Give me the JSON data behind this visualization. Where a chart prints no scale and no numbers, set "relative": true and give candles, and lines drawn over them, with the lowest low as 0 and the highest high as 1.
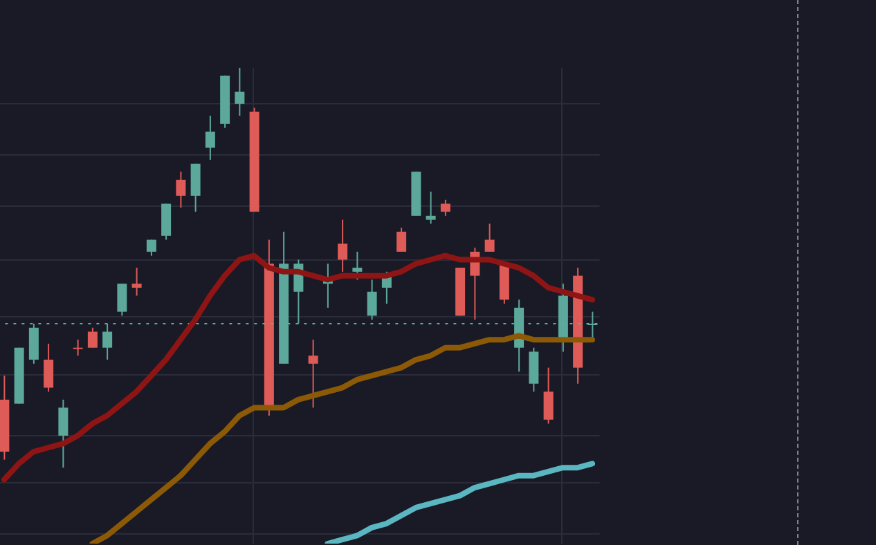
{
  "chart_data": {
    "type": "candlestick",
    "relative": true,
    "grid": true,
    "tick_labels": false,
    "categories": [
      null,
      null,
      null,
      null,
      null,
      null,
      null,
      null,
      null,
      null,
      null,
      null,
      null,
      null,
      null,
      null,
      null,
      null,
      null,
      null,
      null,
      null,
      null,
      null,
      null,
      null,
      null,
      null,
      null,
      null,
      null,
      null,
      null,
      null,
      null,
      null,
      null,
      null,
      null,
      null,
      null
    ],
    "ohlc": [
      [
        0.17,
        0.23,
        0.02,
        0.04
      ],
      [
        0.16,
        0.3,
        0.16,
        0.3
      ],
      [
        0.27,
        0.36,
        0.26,
        0.35
      ],
      [
        0.27,
        0.31,
        0.19,
        0.2
      ],
      [
        0.08,
        0.17,
        0,
        0.15
      ],
      [
        0.3,
        0.32,
        0.28,
        0.3
      ],
      [
        0.34,
        0.35,
        0.3,
        0.3
      ],
      [
        0.3,
        0.36,
        0.27,
        0.34
      ],
      [
        0.39,
        0.46,
        0.38,
        0.46
      ],
      [
        0.46,
        0.5,
        0.43,
        0.45
      ],
      [
        0.54,
        0.57,
        0.53,
        0.57
      ],
      [
        0.58,
        0.66,
        0.57,
        0.66
      ],
      [
        0.72,
        0.74,
        0.65,
        0.68
      ],
      [
        0.68,
        0.76,
        0.64,
        0.76
      ],
      [
        0.8,
        0.88,
        0.77,
        0.84
      ],
      [
        0.86,
        0.98,
        0.85,
        0.98
      ],
      [
        0.91,
        1,
        0.88,
        0.94
      ],
      [
        0.89,
        0.9,
        0.64,
        0.64
      ],
      [
        0.51,
        0.57,
        0.13,
        0.15
      ],
      [
        0.26,
        0.59,
        0.26,
        0.51
      ],
      [
        0.44,
        0.52,
        0.36,
        0.51
      ],
      [
        0.28,
        0.32,
        0.15,
        0.26
      ],
      [
        0.46,
        0.51,
        0.4,
        0.47
      ],
      [
        0.56,
        0.62,
        0.49,
        0.52
      ],
      [
        0.49,
        0.54,
        0.47,
        0.5
      ],
      [
        0.38,
        0.47,
        0.37,
        0.44
      ],
      [
        0.45,
        0.49,
        0.41,
        0.48
      ],
      [
        0.59,
        0.6,
        0.54,
        0.54
      ],
      [
        0.63,
        0.74,
        0.63,
        0.74
      ],
      [
        0.62,
        0.69,
        0.61,
        0.63
      ],
      [
        0.66,
        0.67,
        0.63,
        0.64
      ],
      [
        0.5,
        0.5,
        0.38,
        0.38
      ],
      [
        0.54,
        0.55,
        0.37,
        0.48
      ],
      [
        0.57,
        0.61,
        0.54,
        0.54
      ],
      [
        0.51,
        0.51,
        0.41,
        0.42
      ],
      [
        0.3,
        0.42,
        0.24,
        0.4
      ],
      [
        0.21,
        0.3,
        0.19,
        0.29
      ],
      [
        0.19,
        0.25,
        0.11,
        0.12
      ],
      [
        0.32,
        0.46,
        0.29,
        0.43
      ],
      [
        0.48,
        0.5,
        0.21,
        0.25
      ],
      [
        0.36,
        0.39,
        0.32,
        0.36
      ]
    ],
    "colors": [
      "#de5b57",
      "#5ca89a",
      "#5ca89a",
      "#de5b57",
      "#5ca89a",
      "#de5b57",
      "#de5b57",
      "#5ca89a",
      "#5ca89a",
      "#de5b57",
      "#5ca89a",
      "#5ca89a",
      "#de5b57",
      "#5ca89a",
      "#5ca89a",
      "#5ca89a",
      "#5ca89a",
      "#de5b57",
      "#de5b57",
      "#5ca89a",
      "#5ca89a",
      "#de5b57",
      "#5ca89a",
      "#de5b57",
      "#5ca89a",
      "#5ca89a",
      "#5ca89a",
      "#de5b57",
      "#5ca89a",
      "#5ca89a",
      "#de5b57",
      "#de5b57",
      "#de5b57",
      "#de5b57",
      "#de5b57",
      "#5ca89a",
      "#5ca89a",
      "#de5b57",
      "#5ca89a",
      "#de5b57",
      "#5ca89a"
    ],
    "series": [
      {
        "type": "line",
        "color": "#8f1515",
        "values": [
          -0.03,
          0.01,
          0.04,
          0.05,
          0.06,
          0.08,
          0.11,
          0.13,
          0.16,
          0.19,
          0.23,
          0.27,
          0.32,
          0.37,
          0.43,
          0.48,
          0.52,
          0.53,
          0.5,
          0.49,
          0.49,
          0.48,
          0.47,
          0.48,
          0.48,
          0.48,
          0.48,
          0.49,
          0.51,
          0.52,
          0.53,
          0.52,
          0.52,
          0.52,
          0.51,
          0.5,
          0.48,
          0.45,
          0.44,
          0.43,
          0.42
        ]
      },
      {
        "type": "line",
        "color": "#8c5a06",
        "values": [
          null,
          null,
          null,
          null,
          null,
          null,
          -0.19,
          -0.17,
          -0.14,
          -0.11,
          -0.08,
          -0.05,
          -0.02,
          0.02,
          0.06,
          0.09,
          0.13,
          0.15,
          0.15,
          0.15,
          0.17,
          0.18,
          0.19,
          0.2,
          0.22,
          0.23,
          0.24,
          0.25,
          0.27,
          0.28,
          0.3,
          0.3,
          0.31,
          0.32,
          0.32,
          0.33,
          0.32,
          0.32,
          0.32,
          0.32,
          0.32
        ]
      },
      {
        "type": "line",
        "color": "#5ab6c0",
        "values": [
          null,
          null,
          null,
          null,
          null,
          null,
          null,
          null,
          null,
          null,
          null,
          null,
          null,
          null,
          null,
          null,
          null,
          null,
          null,
          null,
          null,
          null,
          -0.19,
          -0.18,
          -0.17,
          -0.15,
          -0.14,
          -0.12,
          -0.1,
          -0.09,
          -0.08,
          -0.07,
          -0.05,
          -0.04,
          -0.03,
          -0.02,
          -0.02,
          -0.01,
          0,
          0,
          0.01
        ]
      }
    ],
    "ref_lines": [
      {
        "axis": "y",
        "value": 0.36,
        "color": "#4fb3a9",
        "line_style": "dotted"
      }
    ]
  }
}
